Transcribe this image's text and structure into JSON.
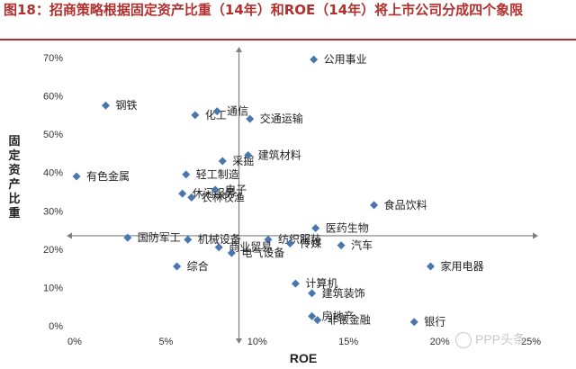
{
  "title": "图18：招商策略根据固定资产比重（14年）和ROE（14年）将上市公司分成四个象限",
  "watermark": "PPP头条",
  "chart_data": {
    "type": "scatter",
    "title": "图18：招商策略根据固定资产比重（14年）和ROE（14年）将上市公司分成四个象限",
    "xlabel": "ROE",
    "ylabel": "固定资产比重",
    "xlim": [
      0,
      25
    ],
    "ylim": [
      0,
      70
    ],
    "x_ticks": [
      "0%",
      "5%",
      "10%",
      "15%",
      "20%",
      "25%"
    ],
    "y_ticks": [
      "0%",
      "10%",
      "20%",
      "30%",
      "40%",
      "50%",
      "60%",
      "70%"
    ],
    "quadrant_lines": {
      "x": 9.0,
      "y": 23.5
    },
    "marker_color": "#4a76b0",
    "axis_color": "#7f7f7f",
    "points": [
      {
        "label": "公用事业",
        "x": 13.1,
        "y": 69.5
      },
      {
        "label": "钢铁",
        "x": 1.7,
        "y": 57.5
      },
      {
        "label": "化工",
        "x": 6.6,
        "y": 55.0
      },
      {
        "label": "通信",
        "x": 7.8,
        "y": 56.0
      },
      {
        "label": "交通运输",
        "x": 9.6,
        "y": 54.0
      },
      {
        "label": "采掘",
        "x": 8.1,
        "y": 43.0
      },
      {
        "label": "建筑材料",
        "x": 9.5,
        "y": 44.5
      },
      {
        "label": "有色金属",
        "x": 0.1,
        "y": 39.0
      },
      {
        "label": "轻工制造",
        "x": 6.1,
        "y": 39.5
      },
      {
        "label": "休闲服务",
        "x": 5.9,
        "y": 34.5
      },
      {
        "label": "电子",
        "x": 7.7,
        "y": 35.5
      },
      {
        "label": "农林牧渔",
        "x": 6.4,
        "y": 33.5
      },
      {
        "label": "食品饮料",
        "x": 16.4,
        "y": 31.5
      },
      {
        "label": "国防军工",
        "x": 2.9,
        "y": 23.0
      },
      {
        "label": "机械设备",
        "x": 6.2,
        "y": 22.5
      },
      {
        "label": "纺织服装",
        "x": 10.6,
        "y": 22.5
      },
      {
        "label": "医药生物",
        "x": 13.2,
        "y": 25.5
      },
      {
        "label": "传媒",
        "x": 11.8,
        "y": 21.5
      },
      {
        "label": "汽车",
        "x": 14.6,
        "y": 21.0
      },
      {
        "label": "商业贸易",
        "x": 7.9,
        "y": 20.5
      },
      {
        "label": "电气设备",
        "x": 8.6,
        "y": 19.0
      },
      {
        "label": "综合",
        "x": 5.6,
        "y": 15.5
      },
      {
        "label": "家用电器",
        "x": 19.5,
        "y": 15.5
      },
      {
        "label": "计算机",
        "x": 12.1,
        "y": 11.0
      },
      {
        "label": "建筑装饰",
        "x": 13.0,
        "y": 8.5
      },
      {
        "label": "房地产",
        "x": 13.0,
        "y": 2.5
      },
      {
        "label": "非银金融",
        "x": 13.3,
        "y": 1.5
      },
      {
        "label": "银行",
        "x": 18.6,
        "y": 1.0
      }
    ]
  }
}
